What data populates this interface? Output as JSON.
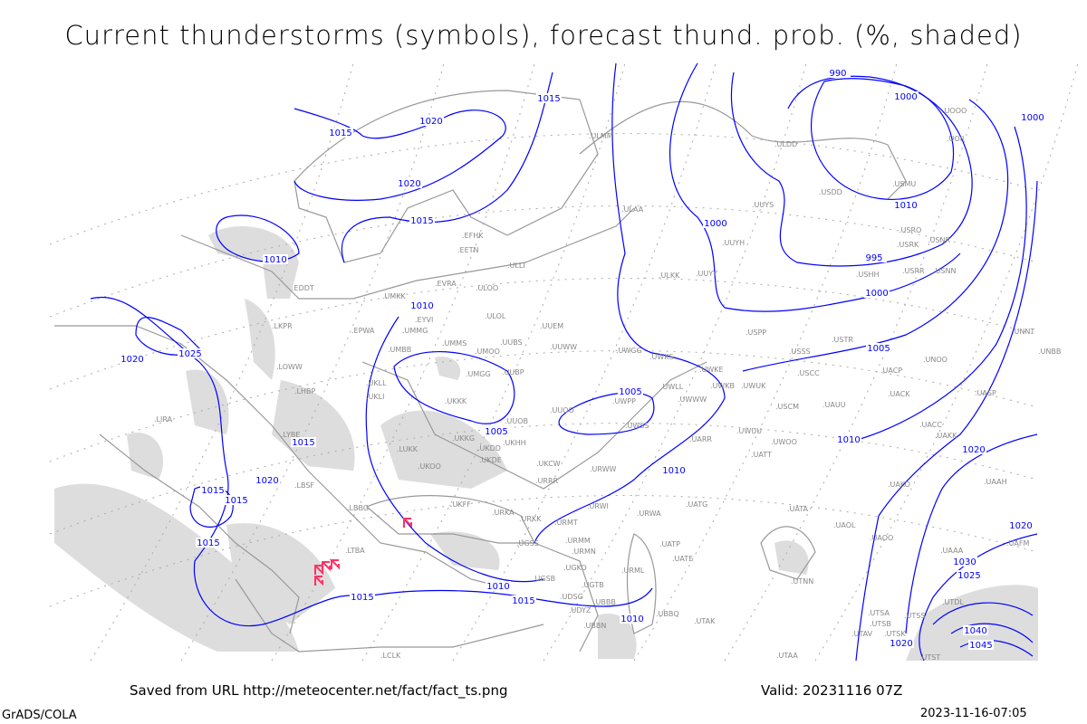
{
  "title": "Current thunderstorms (symbols), forecast thund. prob. (%, shaded)",
  "footer": {
    "saved_from": "Saved from URL http://meteocenter.net/fact/fact_ts.png",
    "valid": "Valid: 20231116 07Z",
    "software": "GrADS/COLA",
    "timestamp": "2023-11-16-07:05"
  },
  "colors": {
    "isobar": "#0000ff",
    "coast": "#999999",
    "shade": "#dddddd",
    "storm_symbol": "#ff3366",
    "station": "#888888"
  },
  "map": {
    "layers": [
      "isobars (hPa)",
      "thunderstorm probability shading",
      "current thunderstorm symbols",
      "station ICAO codes"
    ],
    "isobar_labels": [
      "1015",
      "1020",
      "1015",
      "1020",
      "1015",
      "1010",
      "1010",
      "1025",
      "1020",
      "1015",
      "1020",
      "1015",
      "1015",
      "1015",
      "1010",
      "1005",
      "1005",
      "1010",
      "1010",
      "1015",
      "1010",
      "990",
      "1000",
      "1000",
      "995",
      "1000",
      "1005",
      "1010",
      "1020",
      "1020",
      "1030",
      "1025",
      "1040",
      "1045",
      "1020",
      "1015",
      "1000"
    ],
    "stations": [
      "ULAA",
      "EFHK",
      "EETN",
      "EVRA",
      "ULLI",
      "ULOO",
      "UMKK",
      "EDDT",
      "LKPR",
      "EPWA",
      "EYVI",
      "ULOL",
      "UUEM",
      "UMMG",
      "UMMS",
      "UMOO",
      "UUBS",
      "UUWW",
      "UWGG",
      "UWKS",
      "UMBB",
      "LOWW",
      "LHBP",
      "UKLL",
      "UKLI",
      "UMGG",
      "UUBP",
      "UKKK",
      "UUOO",
      "UWPP",
      "UWSS",
      "UUOB",
      "UKHH",
      "UKKG",
      "UKDD",
      "UKDE",
      "UKCW",
      "URWW",
      "URRR",
      "UKOO",
      "LUKK",
      "LYBE",
      "LIRA",
      "LBSF",
      "LBBG",
      "UKFF",
      "URKA",
      "URKK",
      "URWI",
      "URMT",
      "URMM",
      "URMN",
      "UGSS",
      "UGSB",
      "UGKO",
      "UGTB",
      "UBBB",
      "UDSG",
      "UDYZ",
      "LTBA",
      "ULKK",
      "UUYY",
      "UUYH",
      "UUYS",
      "ULDD",
      "USDD",
      "USMU",
      "UOOO",
      "UOII",
      "USRO",
      "USRK",
      "USNR",
      "USRR",
      "USNN",
      "USHH",
      "USPP",
      "USSS",
      "USTR",
      "USCC",
      "USCM",
      "UAUU",
      "UACP",
      "UNOO",
      "UACK",
      "UASP",
      "UACC",
      "UAKK",
      "UWUU",
      "UWOO",
      "UATT",
      "UARR",
      "UWLL",
      "UWKE",
      "UWKB",
      "UWUK",
      "UWWW",
      "UATG",
      "URWA",
      "UATP",
      "UATE",
      "URML",
      "UBBQ",
      "UTAK",
      "UATA",
      "UAOL",
      "UAOO",
      "UTNN",
      "UAKO",
      "UAAH",
      "UTSA",
      "UTSB",
      "UTSS",
      "UTAV",
      "UTSK",
      "UTST",
      "UTAA",
      "UNNT",
      "UNBB",
      "UAFM",
      "UAAA",
      "UTDL",
      "LCLK",
      "UBBN",
      "ULMM"
    ],
    "storm_symbol_count": 5
  }
}
